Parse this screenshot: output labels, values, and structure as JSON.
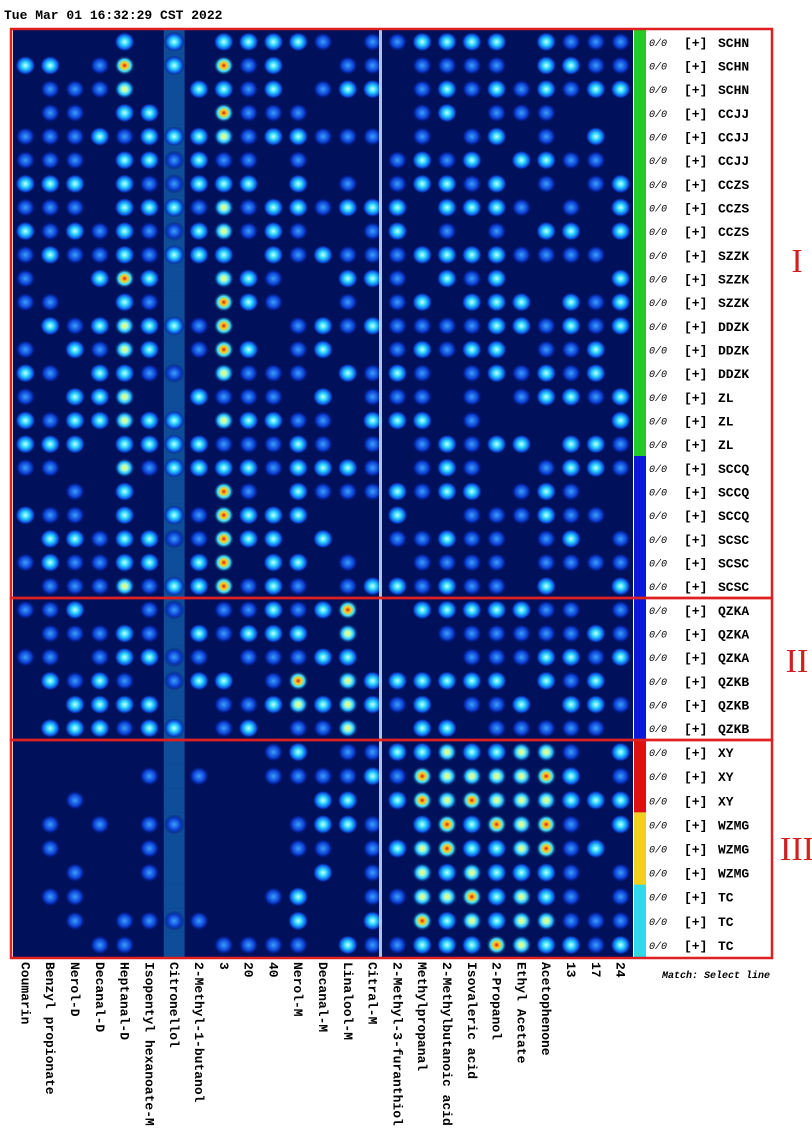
{
  "timestamp": "Tue Mar 01 16:32:29 CST 2022",
  "columns": [
    "Coumarin",
    "Benzyl propionate",
    "Nerol-D",
    "Decanal-D",
    "Heptanal-D",
    "Isopentyl hexanoate-M",
    "Citronellol",
    "2-Methyl-1-butanol",
    "3",
    "20",
    "40",
    "Nerol-M",
    "Decanal-M",
    "Linalool-M",
    "Citral-M",
    "2-Methyl-3-furanthiol",
    "Methylpropanal",
    "2-Methylbutanoic acid",
    "Isovaleric acid",
    "2-Propanol",
    "Ethyl Acetate",
    "Acetophenone",
    "13",
    "17",
    "24"
  ],
  "rows": [
    {
      "ratio": "0/0",
      "tag": "[+]",
      "name": "SCHN"
    },
    {
      "ratio": "0/0",
      "tag": "[+]",
      "name": "SCHN"
    },
    {
      "ratio": "0/0",
      "tag": "[+]",
      "name": "SCHN"
    },
    {
      "ratio": "0/0",
      "tag": "[+]",
      "name": "CCJJ"
    },
    {
      "ratio": "0/0",
      "tag": "[+]",
      "name": "CCJJ"
    },
    {
      "ratio": "0/0",
      "tag": "[+]",
      "name": "CCJJ"
    },
    {
      "ratio": "0/0",
      "tag": "[+]",
      "name": "CCZS"
    },
    {
      "ratio": "0/0",
      "tag": "[+]",
      "name": "CCZS"
    },
    {
      "ratio": "0/0",
      "tag": "[+]",
      "name": "CCZS"
    },
    {
      "ratio": "0/0",
      "tag": "[+]",
      "name": "SZZK"
    },
    {
      "ratio": "0/0",
      "tag": "[+]",
      "name": "SZZK"
    },
    {
      "ratio": "0/0",
      "tag": "[+]",
      "name": "SZZK"
    },
    {
      "ratio": "0/0",
      "tag": "[+]",
      "name": "DDZK"
    },
    {
      "ratio": "0/0",
      "tag": "[+]",
      "name": "DDZK"
    },
    {
      "ratio": "0/0",
      "tag": "[+]",
      "name": "DDZK"
    },
    {
      "ratio": "0/0",
      "tag": "[+]",
      "name": "ZL"
    },
    {
      "ratio": "0/0",
      "tag": "[+]",
      "name": "ZL"
    },
    {
      "ratio": "0/0",
      "tag": "[+]",
      "name": "ZL"
    },
    {
      "ratio": "0/0",
      "tag": "[+]",
      "name": "SCCQ"
    },
    {
      "ratio": "0/0",
      "tag": "[+]",
      "name": "SCCQ"
    },
    {
      "ratio": "0/0",
      "tag": "[+]",
      "name": "SCCQ"
    },
    {
      "ratio": "0/0",
      "tag": "[+]",
      "name": "SCSC"
    },
    {
      "ratio": "0/0",
      "tag": "[+]",
      "name": "SCSC"
    },
    {
      "ratio": "0/0",
      "tag": "[+]",
      "name": "SCSC"
    },
    {
      "ratio": "0/0",
      "tag": "[+]",
      "name": "QZKA"
    },
    {
      "ratio": "0/0",
      "tag": "[+]",
      "name": "QZKA"
    },
    {
      "ratio": "0/0",
      "tag": "[+]",
      "name": "QZKA"
    },
    {
      "ratio": "0/0",
      "tag": "[+]",
      "name": "QZKB"
    },
    {
      "ratio": "0/0",
      "tag": "[+]",
      "name": "QZKB"
    },
    {
      "ratio": "0/0",
      "tag": "[+]",
      "name": "QZKB"
    },
    {
      "ratio": "0/0",
      "tag": "[+]",
      "name": "XY"
    },
    {
      "ratio": "0/0",
      "tag": "[+]",
      "name": "XY"
    },
    {
      "ratio": "0/0",
      "tag": "[+]",
      "name": "XY"
    },
    {
      "ratio": "0/0",
      "tag": "[+]",
      "name": "WZMG"
    },
    {
      "ratio": "0/0",
      "tag": "[+]",
      "name": "WZMG"
    },
    {
      "ratio": "0/0",
      "tag": "[+]",
      "name": "WZMG"
    },
    {
      "ratio": "0/0",
      "tag": "[+]",
      "name": "TC"
    },
    {
      "ratio": "0/0",
      "tag": "[+]",
      "name": "TC"
    },
    {
      "ratio": "0/0",
      "tag": "[+]",
      "name": "TC"
    }
  ],
  "groups": [
    "I",
    "II",
    "III"
  ],
  "footer": "Match: Select line"
}
